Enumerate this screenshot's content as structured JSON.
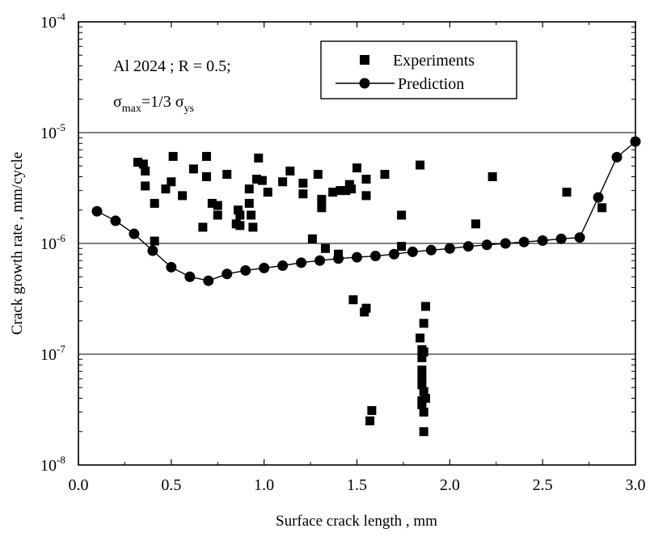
{
  "chart_data": {
    "type": "scatter",
    "xlabel": "Surface crack length , mm",
    "ylabel": "Crack growth rate ,  mm/cycle",
    "xlim": [
      0,
      3
    ],
    "ylim": [
      1e-08,
      0.0001
    ],
    "yscale": "log",
    "x_ticks": [
      "0.0",
      "0.5",
      "1.0",
      "1.5",
      "2.0",
      "2.5",
      "3.0"
    ],
    "y_ticks": [
      {
        "base": "10",
        "exp": "-8"
      },
      {
        "base": "10",
        "exp": "-7"
      },
      {
        "base": "10",
        "exp": "-6"
      },
      {
        "base": "10",
        "exp": "-5"
      },
      {
        "base": "10",
        "exp": "-4"
      }
    ],
    "gridlines_y": [
      1e-07,
      1e-06,
      1e-05
    ],
    "legend_position": "top-center",
    "annotation": {
      "line1": "Al 2024 ; R = 0.5;",
      "sigma": "σ",
      "max": "max",
      "eq": "=1/3 ",
      "sigma2": "σ",
      "ys": "ys"
    },
    "series": [
      {
        "name": "Experiments",
        "marker": "square",
        "points": [
          [
            0.32,
            5.4e-06
          ],
          [
            0.35,
            5.2e-06
          ],
          [
            0.36,
            4.5e-06
          ],
          [
            0.36,
            3.3e-06
          ],
          [
            0.41,
            2.3e-06
          ],
          [
            0.41,
            1.05e-06
          ],
          [
            0.47,
            3.1e-06
          ],
          [
            0.5,
            3.6e-06
          ],
          [
            0.51,
            6.1e-06
          ],
          [
            0.56,
            2.7e-06
          ],
          [
            0.62,
            4.7e-06
          ],
          [
            0.67,
            1.4e-06
          ],
          [
            0.69,
            6.1e-06
          ],
          [
            0.69,
            4e-06
          ],
          [
            0.72,
            2.3e-06
          ],
          [
            0.75,
            2.2e-06
          ],
          [
            0.75,
            1.8e-06
          ],
          [
            0.8,
            4.2e-06
          ],
          [
            0.85,
            1.5e-06
          ],
          [
            0.86,
            2e-06
          ],
          [
            0.87,
            1.8e-06
          ],
          [
            0.87,
            1.45e-06
          ],
          [
            0.92,
            3.1e-06
          ],
          [
            0.92,
            2.3e-06
          ],
          [
            0.93,
            1.8e-06
          ],
          [
            0.94,
            1.4e-06
          ],
          [
            0.96,
            3.8e-06
          ],
          [
            0.97,
            5.9e-06
          ],
          [
            0.99,
            3.7e-06
          ],
          [
            1.02,
            2.9e-06
          ],
          [
            1.1,
            3.6e-06
          ],
          [
            1.14,
            4.5e-06
          ],
          [
            1.21,
            3.5e-06
          ],
          [
            1.21,
            2.8e-06
          ],
          [
            1.26,
            1.1e-06
          ],
          [
            1.29,
            4.2e-06
          ],
          [
            1.31,
            2.5e-06
          ],
          [
            1.31,
            2.1e-06
          ],
          [
            1.33,
            9e-07
          ],
          [
            1.37,
            2.9e-06
          ],
          [
            1.4,
            8e-07
          ],
          [
            1.41,
            3e-06
          ],
          [
            1.44,
            3e-06
          ],
          [
            1.46,
            3.4e-06
          ],
          [
            1.47,
            3.1e-06
          ],
          [
            1.48,
            3.1e-07
          ],
          [
            1.5,
            4.8e-06
          ],
          [
            1.54,
            2.4e-07
          ],
          [
            1.55,
            2.6e-07
          ],
          [
            1.55,
            3.8e-06
          ],
          [
            1.55,
            2.7e-06
          ],
          [
            1.57,
            2.5e-08
          ],
          [
            1.58,
            3.1e-08
          ],
          [
            1.65,
            4.2e-06
          ],
          [
            1.74,
            1.8e-06
          ],
          [
            1.74,
            9.4e-07
          ],
          [
            1.84,
            5.1e-06
          ],
          [
            1.84,
            1.4e-07
          ],
          [
            1.85,
            1.1e-07
          ],
          [
            1.85,
            9.3e-08
          ],
          [
            1.85,
            7.2e-08
          ],
          [
            1.85,
            6e-08
          ],
          [
            1.85,
            5.3e-08
          ],
          [
            1.85,
            3.8e-08
          ],
          [
            1.85,
            3.5e-08
          ],
          [
            1.86,
            4.6e-08
          ],
          [
            1.86,
            1.9e-07
          ],
          [
            1.86,
            1.05e-07
          ],
          [
            1.86,
            2e-08
          ],
          [
            1.86,
            3e-08
          ],
          [
            1.87,
            4e-08
          ],
          [
            1.87,
            2.7e-07
          ],
          [
            2.14,
            1.5e-06
          ],
          [
            2.23,
            4e-06
          ],
          [
            2.63,
            2.9e-06
          ],
          [
            2.82,
            2.1e-06
          ]
        ]
      },
      {
        "name": "Prediction",
        "marker": "circle",
        "points": [
          [
            0.1,
            1.95e-06
          ],
          [
            0.2,
            1.6e-06
          ],
          [
            0.3,
            1.22e-06
          ],
          [
            0.4,
            8.6e-07
          ],
          [
            0.5,
            6.1e-07
          ],
          [
            0.6,
            5e-07
          ],
          [
            0.7,
            4.6e-07
          ],
          [
            0.8,
            5.3e-07
          ],
          [
            0.9,
            5.7e-07
          ],
          [
            1.0,
            6e-07
          ],
          [
            1.1,
            6.3e-07
          ],
          [
            1.2,
            6.7e-07
          ],
          [
            1.3,
            7e-07
          ],
          [
            1.4,
            7.3e-07
          ],
          [
            1.5,
            7.5e-07
          ],
          [
            1.6,
            7.7e-07
          ],
          [
            1.7,
            8e-07
          ],
          [
            1.8,
            8.4e-07
          ],
          [
            1.9,
            8.7e-07
          ],
          [
            2.0,
            9e-07
          ],
          [
            2.1,
            9.4e-07
          ],
          [
            2.2,
            9.7e-07
          ],
          [
            2.3,
            1e-06
          ],
          [
            2.4,
            1.03e-06
          ],
          [
            2.5,
            1.06e-06
          ],
          [
            2.6,
            1.1e-06
          ],
          [
            2.7,
            1.13e-06
          ],
          [
            2.8,
            2.6e-06
          ],
          [
            2.9,
            6e-06
          ],
          [
            3.0,
            8.3e-06
          ]
        ]
      }
    ]
  }
}
